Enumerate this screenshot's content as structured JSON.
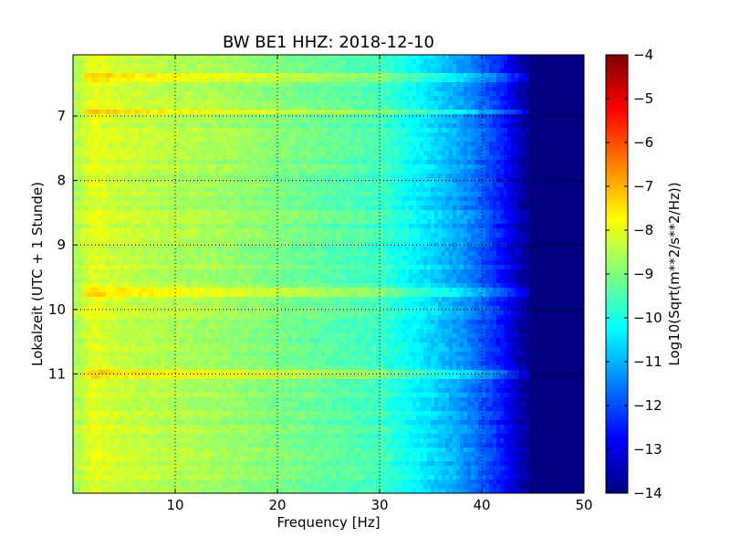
{
  "chart_data": {
    "type": "heatmap",
    "title": "BW BE1 HHZ: 2018-12-10",
    "xlabel": "Frequency [Hz]",
    "ylabel": "Lokalzeit (UTC + 1 Stunde)",
    "xlim": [
      0,
      50
    ],
    "ylim": [
      12.85,
      6.05
    ],
    "x_ticks": [
      10,
      20,
      30,
      40,
      50
    ],
    "y_ticks": [
      7,
      8,
      9,
      10,
      11
    ],
    "grid": true,
    "colormap": "jet",
    "colorbar": {
      "label": "Log10(Sqrt(m**2/s**2/Hz))",
      "range": [
        -14,
        -4
      ],
      "ticks": [
        -4,
        -5,
        -6,
        -7,
        -8,
        -9,
        -10,
        -11,
        -12,
        -13,
        -14
      ]
    },
    "spectral_profile": {
      "frequency_hz": [
        0.5,
        2,
        5,
        10,
        15,
        20,
        25,
        30,
        33,
        35,
        38,
        40,
        42,
        44,
        46,
        50
      ],
      "level": [
        -8.5,
        -8.0,
        -8.3,
        -8.5,
        -8.7,
        -9.0,
        -9.3,
        -9.6,
        -10.2,
        -10.6,
        -11.2,
        -11.8,
        -12.5,
        -13.6,
        -14.0,
        -14.0
      ]
    },
    "bright_bands_hour": [
      6.42,
      6.95,
      9.72,
      11.02
    ]
  },
  "colors": {
    "background": "#ffffff",
    "frame": "#000000"
  }
}
